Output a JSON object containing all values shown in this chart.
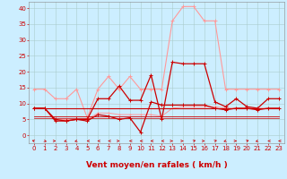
{
  "x": [
    0,
    1,
    2,
    3,
    4,
    5,
    6,
    7,
    8,
    9,
    10,
    11,
    12,
    13,
    14,
    15,
    16,
    17,
    18,
    19,
    20,
    21,
    22,
    23
  ],
  "series": [
    {
      "name": "rafales_light",
      "color": "#ff9999",
      "linewidth": 0.8,
      "marker": "+",
      "markersize": 3,
      "y": [
        14.5,
        14.5,
        11.5,
        11.5,
        14.5,
        5.5,
        14.5,
        18.5,
        14.5,
        18.5,
        14.5,
        14.5,
        14.5,
        36.0,
        40.5,
        40.5,
        36.0,
        36.0,
        14.5,
        14.5,
        14.5,
        14.5,
        14.5,
        14.5
      ]
    },
    {
      "name": "vent_moyen_light",
      "color": "#ff9999",
      "linewidth": 0.7,
      "marker": "+",
      "markersize": 2,
      "y": [
        8.5,
        8.5,
        5.0,
        5.0,
        5.0,
        5.0,
        7.0,
        7.0,
        6.5,
        6.5,
        6.5,
        6.5,
        6.0,
        8.5,
        9.0,
        9.0,
        9.0,
        9.0,
        8.5,
        8.5,
        8.5,
        8.5,
        8.5,
        8.5
      ]
    },
    {
      "name": "rafales_dark",
      "color": "#cc0000",
      "linewidth": 0.9,
      "marker": "+",
      "markersize": 3,
      "y": [
        8.5,
        8.5,
        4.5,
        4.5,
        5.0,
        5.0,
        11.5,
        11.5,
        15.5,
        11.0,
        11.0,
        19.0,
        5.0,
        23.0,
        22.5,
        22.5,
        22.5,
        10.5,
        9.0,
        11.5,
        9.0,
        8.5,
        11.5,
        11.5
      ]
    },
    {
      "name": "vent_moyen_dark",
      "color": "#cc0000",
      "linewidth": 0.9,
      "marker": "+",
      "markersize": 3,
      "y": [
        8.5,
        8.5,
        5.0,
        4.5,
        5.0,
        4.5,
        6.5,
        6.0,
        5.0,
        5.5,
        1.0,
        10.5,
        9.5,
        9.5,
        9.5,
        9.5,
        9.5,
        8.5,
        8.0,
        8.5,
        8.5,
        8.0,
        8.5,
        8.5
      ]
    },
    {
      "name": "flat_dark1",
      "color": "#cc0000",
      "linewidth": 0.8,
      "marker": null,
      "markersize": 0,
      "y": [
        8.5,
        8.5,
        8.5,
        8.5,
        8.5,
        8.5,
        8.5,
        8.5,
        8.5,
        8.5,
        8.5,
        8.5,
        8.5,
        8.5,
        8.5,
        8.5,
        8.5,
        8.5,
        8.5,
        8.5,
        8.5,
        8.5,
        8.5,
        8.5
      ]
    },
    {
      "name": "flat_dark2",
      "color": "#cc0000",
      "linewidth": 0.6,
      "marker": null,
      "markersize": 0,
      "y": [
        6.0,
        6.0,
        6.0,
        6.0,
        6.0,
        6.0,
        6.0,
        6.0,
        6.0,
        6.0,
        6.0,
        6.0,
        6.0,
        6.0,
        6.0,
        6.0,
        6.0,
        6.0,
        6.0,
        6.0,
        6.0,
        6.0,
        6.0,
        6.0
      ]
    },
    {
      "name": "flat_dark3",
      "color": "#cc0000",
      "linewidth": 0.5,
      "marker": null,
      "markersize": 0,
      "y": [
        5.5,
        5.5,
        5.5,
        5.5,
        5.5,
        5.5,
        5.5,
        5.5,
        5.5,
        5.5,
        5.5,
        5.5,
        5.5,
        5.5,
        5.5,
        5.5,
        5.5,
        5.5,
        5.5,
        5.5,
        5.5,
        5.5,
        5.5,
        5.5
      ]
    }
  ],
  "xlabel": "Vent moyen/en rafales ( km/h )",
  "xlim": [
    -0.5,
    23.5
  ],
  "ylim": [
    -2.5,
    42
  ],
  "yticks": [
    0,
    5,
    10,
    15,
    20,
    25,
    30,
    35,
    40
  ],
  "xticks": [
    0,
    1,
    2,
    3,
    4,
    5,
    6,
    7,
    8,
    9,
    10,
    11,
    12,
    13,
    14,
    15,
    16,
    17,
    18,
    19,
    20,
    21,
    22,
    23
  ],
  "background_color": "#cceeff",
  "grid_color": "#aacccc",
  "tick_fontsize": 5,
  "xlabel_fontsize": 6.5,
  "directions": [
    225,
    45,
    90,
    315,
    315,
    270,
    270,
    270,
    90,
    270,
    270,
    270,
    270,
    90,
    90,
    135,
    90,
    135,
    315,
    90,
    135,
    315,
    270,
    270
  ]
}
